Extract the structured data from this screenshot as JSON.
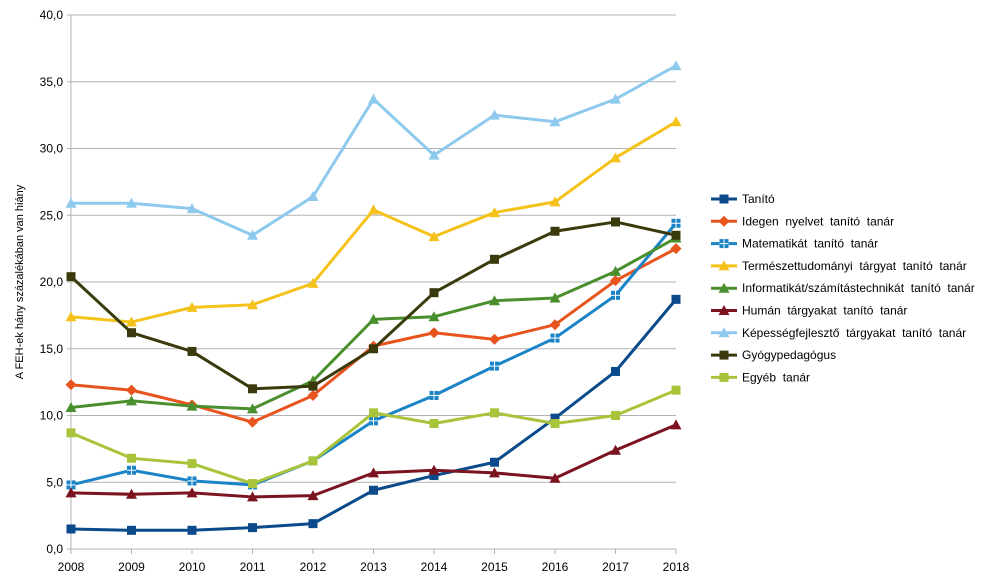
{
  "chart_data": {
    "type": "line",
    "title": "",
    "xlabel": "",
    "ylabel": "A FEH-ek hány százalékában van hiány",
    "x": [
      "2008",
      "2009",
      "2010",
      "2011",
      "2012",
      "2013",
      "2014",
      "2015",
      "2016",
      "2017",
      "2018"
    ],
    "ylim": [
      0,
      40
    ],
    "yticks": [
      "0,0",
      "5,0",
      "10,0",
      "15,0",
      "20,0",
      "25,0",
      "30,0",
      "35,0",
      "40,0"
    ],
    "grid": true,
    "legend_position": "right",
    "series": [
      {
        "name": "Tanító",
        "color": "#0b4a8b",
        "marker": "square",
        "values": [
          1.5,
          1.4,
          1.4,
          1.6,
          1.9,
          4.4,
          5.5,
          6.5,
          9.8,
          13.3,
          18.7
        ]
      },
      {
        "name": "Idegen  nyelvet  tanító  tanár",
        "color": "#e8541e",
        "marker": "diamond",
        "values": [
          12.3,
          11.9,
          10.8,
          9.5,
          11.5,
          15.2,
          16.2,
          15.7,
          16.8,
          20.1,
          22.5
        ]
      },
      {
        "name": "Matematikát  tanító  tanár",
        "color": "#1b84c7",
        "marker": "plus-square",
        "values": [
          4.8,
          5.9,
          5.1,
          4.8,
          6.6,
          9.6,
          11.5,
          13.7,
          15.8,
          19.0,
          24.4
        ]
      },
      {
        "name": "Természettudományi  tárgyat  tanító  tanár",
        "color": "#f5c21b",
        "marker": "triangle",
        "values": [
          17.4,
          17.0,
          18.1,
          18.3,
          19.9,
          25.4,
          23.4,
          25.2,
          26.0,
          29.3,
          32.0
        ]
      },
      {
        "name": "Informatikát/számítástechnikát  tanító  tanár",
        "color": "#4a8f2e",
        "marker": "triangle",
        "values": [
          10.6,
          11.1,
          10.7,
          10.5,
          12.6,
          17.2,
          17.4,
          18.6,
          18.8,
          20.8,
          23.3
        ]
      },
      {
        "name": "Humán  tárgyakat  tanító  tanár",
        "color": "#7b1320",
        "marker": "triangle",
        "values": [
          4.2,
          4.1,
          4.2,
          3.9,
          4.0,
          5.7,
          5.9,
          5.7,
          5.3,
          7.4,
          9.3
        ]
      },
      {
        "name": "Képességfejlesztő  tárgyakat  tanító  tanár",
        "color": "#8ec9ee",
        "marker": "triangle",
        "values": [
          25.9,
          25.9,
          25.5,
          23.5,
          26.4,
          33.7,
          29.5,
          32.5,
          32.0,
          33.7,
          36.2
        ]
      },
      {
        "name": "Gyógypedagógus",
        "color": "#3a3a0d",
        "marker": "square",
        "values": [
          20.4,
          16.2,
          14.8,
          12.0,
          12.2,
          15.0,
          19.2,
          21.7,
          23.8,
          24.5,
          23.5
        ]
      },
      {
        "name": "Egyéb  tanár",
        "color": "#a8c43a",
        "marker": "square",
        "values": [
          8.7,
          6.8,
          6.4,
          4.9,
          6.6,
          10.2,
          9.4,
          10.2,
          9.4,
          10.0,
          11.9
        ]
      }
    ]
  }
}
